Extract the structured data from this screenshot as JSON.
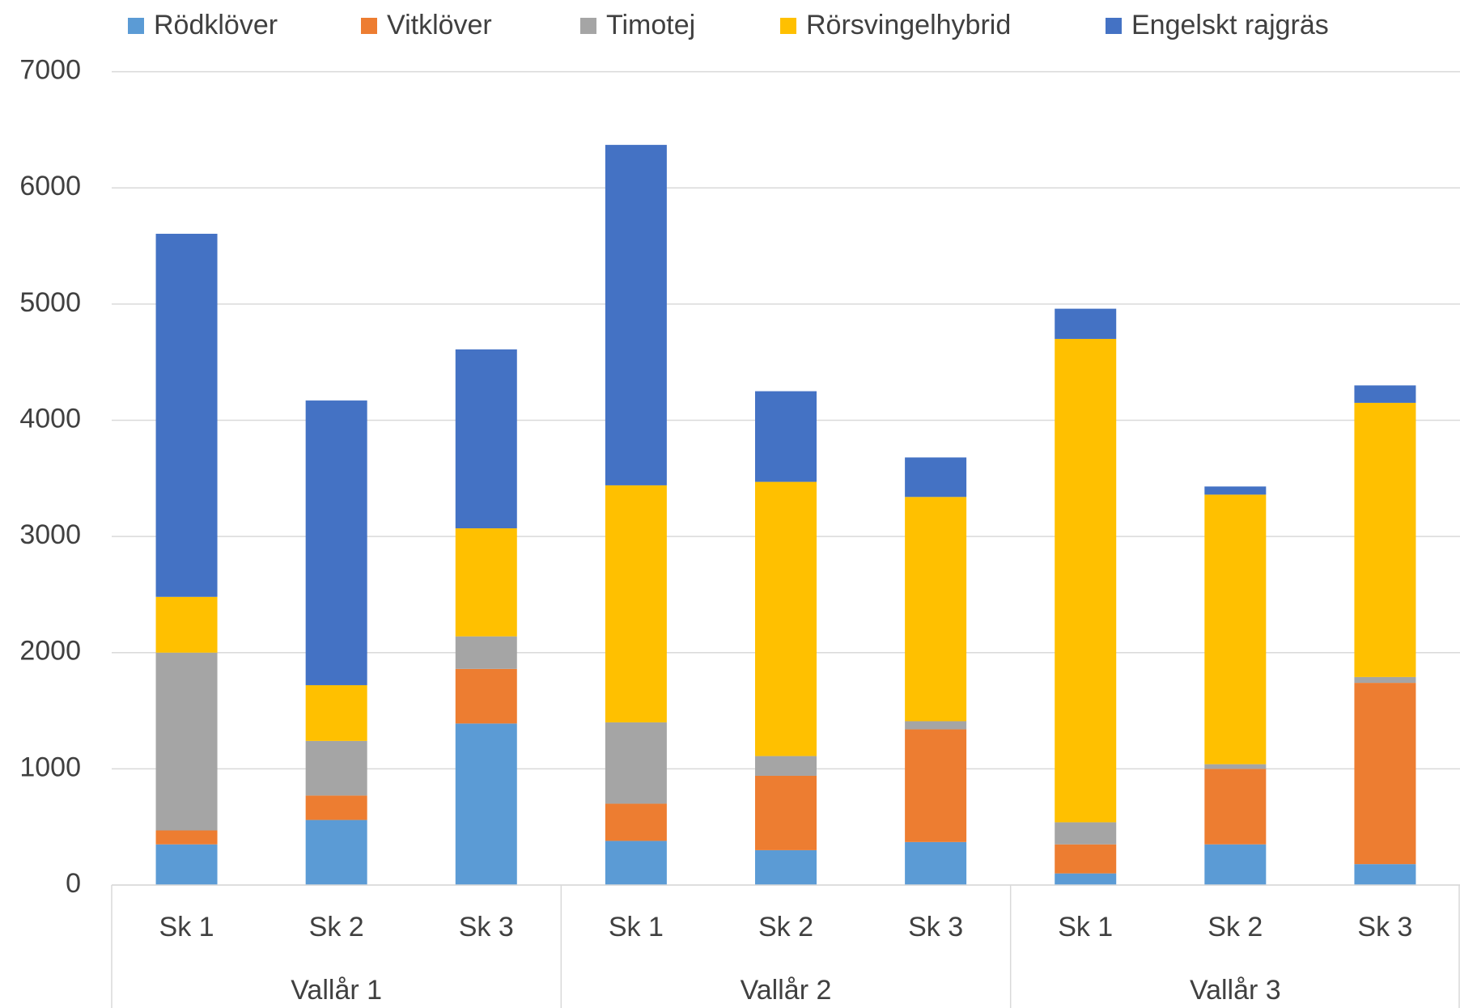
{
  "chart_data": {
    "type": "stacked_bar",
    "categories": [
      "Sk 1",
      "Sk 2",
      "Sk 3",
      "Sk 1",
      "Sk 2",
      "Sk 3",
      "Sk 1",
      "Sk 2",
      "Sk 3"
    ],
    "groups": [
      "Vallår 1",
      "Vallår 2",
      "Vallår 3"
    ],
    "series": [
      {
        "name": "Rödklöver",
        "color": "#5b9bd5",
        "values": [
          350,
          560,
          1390,
          380,
          300,
          370,
          100,
          350,
          180
        ]
      },
      {
        "name": "Vitklöver",
        "color": "#ed7d31",
        "values": [
          120,
          210,
          470,
          320,
          640,
          970,
          250,
          650,
          1560
        ]
      },
      {
        "name": "Timotej",
        "color": "#a5a5a5",
        "values": [
          1530,
          470,
          280,
          700,
          170,
          70,
          190,
          40,
          50
        ]
      },
      {
        "name": "Rörsvingelhybrid",
        "color": "#ffc000",
        "values": [
          480,
          480,
          930,
          2040,
          2360,
          1930,
          4160,
          2320,
          2360
        ]
      },
      {
        "name": "Engelskt rajgräs",
        "color": "#4472c4",
        "values": [
          3125,
          2450,
          1540,
          2930,
          780,
          340,
          260,
          70,
          150
        ]
      }
    ],
    "ylim": [
      0,
      7000
    ],
    "yticks": [
      0,
      1000,
      2000,
      3000,
      4000,
      5000,
      6000,
      7000
    ],
    "grid": true,
    "legend": "top"
  }
}
